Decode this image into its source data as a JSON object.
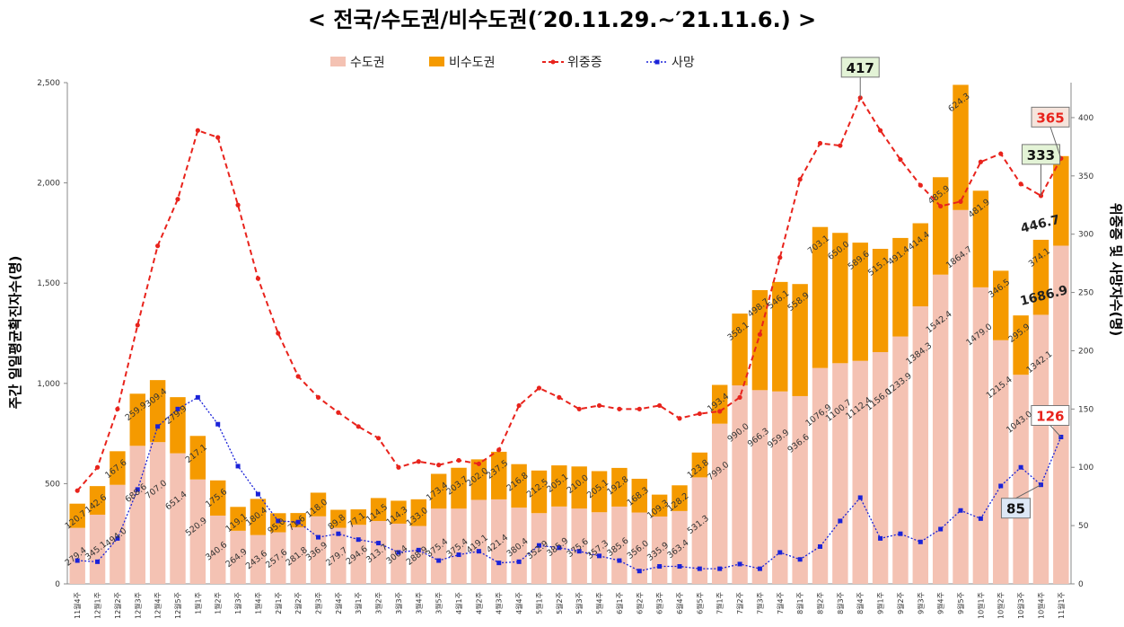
{
  "chart_data": {
    "type": "bar",
    "title": "< 전국/수도권/비수도권(′20.11.29.~′21.11.6.) >",
    "ylabel_left": "주간 일일평균확진자수(명)",
    "ylabel_right": "위중증 및 사망자수(명)",
    "y_left_range": [
      0,
      2500
    ],
    "y_left_ticks": [
      "0",
      "500",
      "1,000",
      "1,500",
      "2,000",
      "2,500"
    ],
    "y_right_range": [
      0,
      430
    ],
    "y_right_ticks": [
      "0",
      "50",
      "100",
      "150",
      "200",
      "250",
      "300",
      "350",
      "400"
    ],
    "categories": [
      "11월4주",
      "12월1주",
      "12월2주",
      "12월3주",
      "12월4주",
      "12월5주",
      "1월1주",
      "1월2주",
      "1월3주",
      "1월4주",
      "2월1주",
      "2월2주",
      "2월3주",
      "2월4주",
      "3월1주",
      "3월2주",
      "3월3주",
      "3월4주",
      "3월5주",
      "4월1주",
      "4월2주",
      "4월3주",
      "4월4주",
      "5월1주",
      "5월2주",
      "5월3주",
      "5월4주",
      "6월1주",
      "6월2주",
      "6월3주",
      "6월4주",
      "6월5주",
      "7월1주",
      "7월2주",
      "7월3주",
      "7월4주",
      "8월1주",
      "8월2주",
      "8월3주",
      "8월4주",
      "9월1주",
      "9월2주",
      "9월3주",
      "9월4주",
      "9월5주",
      "10월1주",
      "10월2주",
      "10월3주",
      "10월4주",
      "11월1주"
    ],
    "series": [
      {
        "name": "수도권",
        "kind": "bar",
        "color": "#f4c2b3",
        "values": [
          279.4,
          345.1,
          494.0,
          688.6,
          707.0,
          651.4,
          520.9,
          340.6,
          264.9,
          243.6,
          257.6,
          281.8,
          336.9,
          279.7,
          294.6,
          313.7,
          300.4,
          288.9,
          375.4,
          375.4,
          419.1,
          421.4,
          380.4,
          352.9,
          385.9,
          375.6,
          357.3,
          385.6,
          356.0,
          335.9,
          363.4,
          531.3,
          799.0,
          990.0,
          966.3,
          959.9,
          936.6,
          1076.9,
          1100.7,
          1112.4,
          1156.0,
          1233.9,
          1384.3,
          1542.4,
          1864.7,
          1479.0,
          1215.4,
          1043.0,
          1342.1,
          1686.9
        ],
        "labels": [
          "279.4",
          "345.1",
          "494.0",
          "688.6",
          "707.0",
          "651.4",
          "520.9",
          "340.6",
          "264.9",
          "243.6",
          "257.6",
          "281.8",
          "336.9",
          "279.7",
          "294.6",
          "313.7",
          "300.4",
          "288.9",
          "375.4",
          "375.4",
          "419.1",
          "421.4",
          "380.4",
          "352.9",
          "385.9",
          "375.6",
          "357.3",
          "385.6",
          "356.0",
          "335.9",
          "363.4",
          "531.3",
          "799.0",
          "990.0",
          "966.3",
          "959.9",
          "936.6",
          "1076.9",
          "1100.7",
          "1112.4",
          "1156.0",
          "1233.9",
          "1384.3",
          "1542.4",
          "1864.7",
          "1479.0",
          "1215.4",
          "1043.0",
          "1342.1",
          "1686.9"
        ]
      },
      {
        "name": "비수도권",
        "kind": "bar",
        "color": "#f59a00",
        "values": [
          120.7,
          142.6,
          167.6,
          259.9,
          309.4,
          279.9,
          217.1,
          175.6,
          119.1,
          180.4,
          95.0,
          71.6,
          118.0,
          89.8,
          77.1,
          114.5,
          114.3,
          133.0,
          173.4,
          203.7,
          202.0,
          237.5,
          216.8,
          212.5,
          205.1,
          210.0,
          205.1,
          192.8,
          168.3,
          109.3,
          128.2,
          123.8,
          193.4,
          358.1,
          498.7,
          546.1,
          558.9,
          703.1,
          650.0,
          589.6,
          515.1,
          491.4,
          414.4,
          485.9,
          624.3,
          481.9,
          346.5,
          295.9,
          374.1,
          446.7
        ],
        "labels": [
          "120.7",
          "142.6",
          "167.6",
          "259.9",
          "309.4",
          "279.9",
          "217.1",
          "175.6",
          "119.1",
          "180.4",
          "95.0",
          "71.6",
          "118.0",
          "89.8",
          "77.1",
          "114.5",
          "114.3",
          "133.0",
          "173.4",
          "203.7",
          "202.0",
          "237.5",
          "216.8",
          "212.5",
          "205.1",
          "210.0",
          "205.1",
          "192.8",
          "168.3",
          "109.3",
          "128.2",
          "123.8",
          "193.4",
          "358.1",
          "498.7",
          "546.1",
          "558.9",
          "703.1",
          "650.0",
          "589.6",
          "515.1",
          "491.4",
          "414.4",
          "485.9",
          "624.3",
          "481.9",
          "346.5",
          "295.9",
          "374.1",
          "446.7"
        ]
      },
      {
        "name": "위중증",
        "kind": "line",
        "axis": "right",
        "color": "#e8231c",
        "values": [
          80,
          100,
          150,
          222,
          290,
          330,
          389,
          383,
          325,
          262,
          215,
          178,
          160,
          147,
          135,
          125,
          100,
          105,
          102,
          106,
          103,
          115,
          153,
          168,
          160,
          150,
          153,
          150,
          150,
          153,
          142,
          146,
          148,
          160,
          214,
          280,
          347,
          378,
          376,
          417,
          389,
          364,
          342,
          324,
          328,
          362,
          369,
          343,
          333,
          365
        ]
      },
      {
        "name": "사망",
        "kind": "line",
        "axis": "right",
        "color": "#1a22d8",
        "values": [
          20,
          19,
          39,
          81,
          135,
          150,
          160,
          137,
          101,
          77,
          54,
          53,
          40,
          43,
          38,
          35,
          27,
          29,
          20,
          25,
          28,
          18,
          19,
          33,
          31,
          28,
          24,
          20,
          11,
          15,
          15,
          13,
          13,
          17,
          13,
          27,
          21,
          32,
          54,
          74,
          39,
          43,
          36,
          47,
          63,
          56,
          84,
          100,
          85,
          126
        ]
      }
    ],
    "callouts": [
      {
        "text": "417",
        "target_series": "위중증",
        "category": "8월4주",
        "color": "#111111",
        "bg": "#e3f3d6"
      },
      {
        "text": "333",
        "target_series": "위중증",
        "category": "10월4주",
        "color": "#111111",
        "bg": "#e3f3d6"
      },
      {
        "text": "365",
        "target_series": "위중증",
        "category": "11월1주",
        "color": "#e8231c",
        "bg": "#f6e4dc"
      },
      {
        "text": "126",
        "target_series": "사망",
        "category": "11월1주",
        "color": "#e8231c",
        "bg": "#ffffff"
      },
      {
        "text": "85",
        "target_series": "사망",
        "category": "10월4주",
        "color": "#111111",
        "bg": "#dde8f6"
      }
    ],
    "legend": [
      "수도권",
      "비수도권",
      "위중증",
      "사망"
    ],
    "legend_position": "top"
  }
}
